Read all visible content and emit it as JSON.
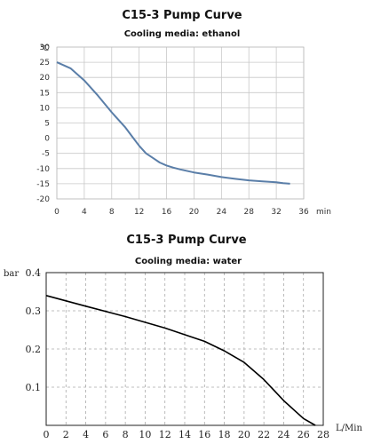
{
  "chart_data": [
    {
      "type": "line",
      "title": "C15-3 Pump Curve",
      "subtitle": "Cooling media: ethanol",
      "xlabel": "min",
      "ylabel": "℃",
      "xlim": [
        0,
        36
      ],
      "ylim": [
        -20,
        30
      ],
      "xticks": [
        0,
        4,
        8,
        12,
        16,
        20,
        24,
        28,
        32,
        36
      ],
      "yticks": [
        30,
        25,
        20,
        15,
        10,
        5,
        0,
        -5,
        -10,
        -15,
        -20
      ],
      "grid": true,
      "line_color": "#5a7ea8",
      "series": [
        {
          "x": [
            0,
            2,
            4,
            6,
            8,
            10,
            11,
            12,
            13,
            14,
            15,
            16,
            17,
            18,
            20,
            22,
            24,
            26,
            28,
            30,
            32,
            33,
            34
          ],
          "y": [
            25,
            23,
            19,
            14,
            8.5,
            3.5,
            0.5,
            -2.5,
            -5,
            -6.5,
            -8,
            -9,
            -9.7,
            -10.3,
            -11.3,
            -12,
            -12.8,
            -13.4,
            -13.9,
            -14.2,
            -14.5,
            -14.8,
            -15
          ]
        }
      ]
    },
    {
      "type": "line",
      "title": "C15-3 Pump Curve",
      "subtitle": "Cooling media: water",
      "xlabel": "L/Min",
      "ylabel": "bar",
      "xlim": [
        0,
        28
      ],
      "ylim": [
        0,
        0.4
      ],
      "xticks": [
        "0",
        "2",
        "4",
        "6",
        "8",
        "10",
        "12",
        "14",
        "16",
        "18",
        "20",
        "22",
        "24",
        "26",
        "28"
      ],
      "yticks": [
        "0.4",
        "0.3",
        "0.2",
        "0.1"
      ],
      "grid": true,
      "line_color": "#000000",
      "series": [
        {
          "x": [
            0,
            4,
            8,
            12,
            16,
            18,
            20,
            22,
            24,
            26,
            27.2
          ],
          "y": [
            0.34,
            0.312,
            0.285,
            0.255,
            0.22,
            0.195,
            0.165,
            0.12,
            0.065,
            0.018,
            0
          ]
        }
      ]
    }
  ]
}
